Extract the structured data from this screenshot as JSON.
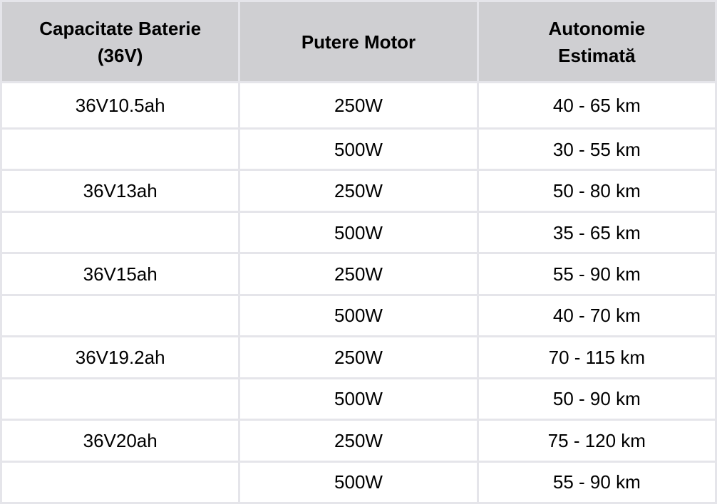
{
  "chart_data": {
    "type": "table",
    "title": "",
    "columns": [
      "Capacitate Baterie (36V)",
      "Putere Motor",
      "Autonomie Estimată"
    ],
    "header_lines": [
      {
        "line1": "Capacitate Baterie",
        "line2": "(36V)"
      },
      {
        "line1": "Putere Motor",
        "line2": ""
      },
      {
        "line1": "Autonomie",
        "line2": "Estimată"
      }
    ],
    "rows": [
      [
        "36V10.5ah",
        "250W",
        "40 - 65 km"
      ],
      [
        "",
        "500W",
        "30 - 55 km"
      ],
      [
        "36V13ah",
        "250W",
        "50 - 80 km"
      ],
      [
        "",
        "500W",
        "35 - 65 km"
      ],
      [
        "36V15ah",
        "250W",
        "55 - 90 km"
      ],
      [
        "",
        "500W",
        "40 - 70 km"
      ],
      [
        "36V19.2ah",
        "250W",
        "70 - 115 km"
      ],
      [
        "",
        "500W",
        "50 - 90 km"
      ],
      [
        "36V20ah",
        "250W",
        "75 - 120 km"
      ],
      [
        "",
        "500W",
        "55 - 90 km"
      ]
    ],
    "layout": {
      "grid": "on",
      "header_position": "top"
    }
  },
  "colors": {
    "header_bg": "#cfcfd2",
    "border": "#e5e5ea",
    "cell_bg": "#ffffff",
    "text": "#000000"
  }
}
